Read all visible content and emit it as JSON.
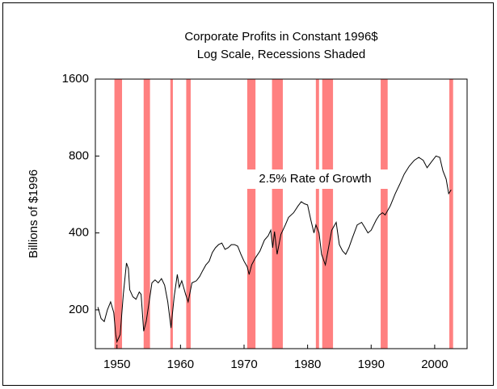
{
  "chart_data": {
    "type": "line",
    "title": "Corporate Profits in Constant 1996$",
    "subtitle": "Log Scale, Recessions Shaded",
    "ylabel": "Billions of $1996",
    "annotation": "2.5% Rate of Growth",
    "color": "#000000",
    "recession_color": "#ff8080",
    "log_y": true,
    "xlim": [
      1946.6,
      2005.1
    ],
    "xticks": [
      1950,
      1960,
      1970,
      1980,
      1990,
      2000
    ],
    "ylim": [
      141,
      1600
    ],
    "yticks": [
      200,
      400,
      800,
      1600
    ],
    "recessions": [
      [
        1949.6,
        1950.8
      ],
      [
        1954.2,
        1955.2
      ],
      [
        1958.4,
        1958.8
      ],
      [
        1960.9,
        1961.6
      ],
      [
        1970.5,
        1971.8
      ],
      [
        1974.4,
        1976.1
      ],
      [
        1981.3,
        1981.8
      ],
      [
        1982.3,
        1984.0
      ],
      [
        1991.5,
        1992.6
      ],
      [
        2002.3,
        2002.9
      ]
    ],
    "x": [
      1947.0,
      1947.5,
      1948.0,
      1948.5,
      1949.0,
      1949.5,
      1949.8,
      1950.0,
      1950.5,
      1951.0,
      1951.5,
      1951.8,
      1952.0,
      1952.5,
      1953.0,
      1953.5,
      1953.8,
      1954.2,
      1954.6,
      1955.0,
      1955.5,
      1956.0,
      1956.5,
      1957.0,
      1957.5,
      1958.0,
      1958.5,
      1959.0,
      1959.5,
      1959.8,
      1960.2,
      1960.8,
      1961.2,
      1961.8,
      1962.5,
      1963.0,
      1963.5,
      1964.0,
      1964.5,
      1965.0,
      1965.5,
      1966.0,
      1966.5,
      1967.0,
      1967.5,
      1968.0,
      1968.5,
      1969.0,
      1969.5,
      1970.0,
      1970.5,
      1970.8,
      1971.2,
      1971.8,
      1972.5,
      1973.2,
      1973.8,
      1974.2,
      1974.5,
      1974.8,
      1975.2,
      1975.8,
      1976.5,
      1977.0,
      1977.8,
      1978.5,
      1979.0,
      1979.5,
      1980.0,
      1980.5,
      1981.0,
      1981.3,
      1981.8,
      1982.2,
      1982.8,
      1983.2,
      1983.8,
      1984.5,
      1985.0,
      1985.5,
      1986.0,
      1986.5,
      1987.0,
      1987.8,
      1988.5,
      1989.0,
      1989.5,
      1990.0,
      1990.8,
      1991.3,
      1991.8,
      1992.2,
      1993.0,
      1993.8,
      1994.5,
      1995.2,
      1996.0,
      1996.8,
      1997.5,
      1998.2,
      1998.8,
      1999.5,
      2000.2,
      2000.8,
      2001.3,
      2001.8,
      2002.2,
      2002.6
    ],
    "values": [
      205,
      185,
      180,
      200,
      215,
      195,
      160,
      150,
      160,
      230,
      305,
      290,
      240,
      225,
      220,
      235,
      230,
      165,
      180,
      210,
      255,
      262,
      255,
      265,
      250,
      215,
      170,
      225,
      275,
      245,
      260,
      230,
      215,
      255,
      260,
      270,
      285,
      300,
      310,
      335,
      350,
      360,
      365,
      345,
      350,
      360,
      360,
      355,
      330,
      310,
      295,
      275,
      300,
      320,
      340,
      375,
      390,
      410,
      350,
      405,
      330,
      395,
      430,
      460,
      480,
      510,
      530,
      520,
      515,
      450,
      400,
      430,
      400,
      330,
      300,
      340,
      410,
      440,
      360,
      340,
      330,
      350,
      380,
      430,
      440,
      420,
      400,
      410,
      450,
      470,
      480,
      470,
      510,
      570,
      620,
      680,
      730,
      770,
      790,
      770,
      720,
      760,
      800,
      790,
      700,
      650,
      570,
      590
    ]
  }
}
